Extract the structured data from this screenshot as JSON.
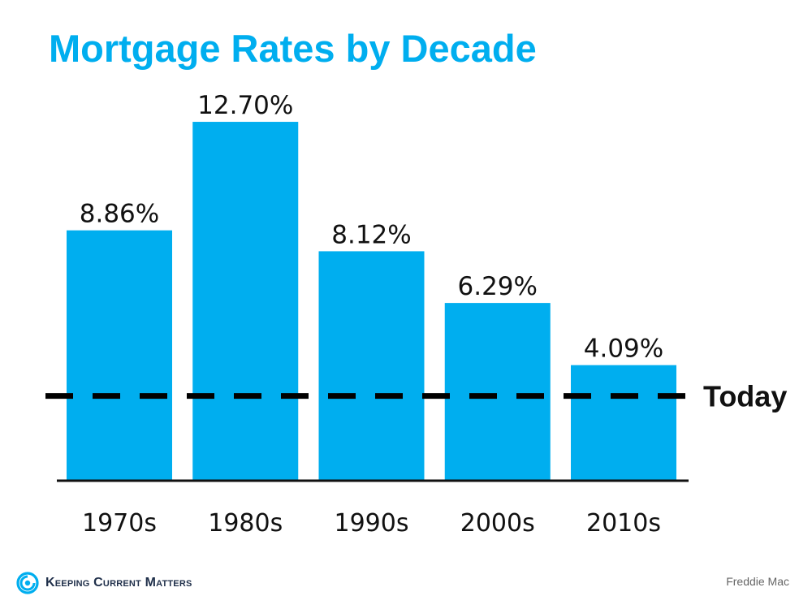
{
  "title": "Mortgage Rates by Decade",
  "chart_data": {
    "type": "bar",
    "title": "Mortgage Rates by Decade",
    "categories": [
      "1970s",
      "1980s",
      "1990s",
      "2000s",
      "2010s"
    ],
    "values": [
      8.86,
      12.7,
      8.12,
      6.29,
      4.09
    ],
    "value_labels": [
      "8.86%",
      "12.70%",
      "8.12%",
      "6.29%",
      "4.09%"
    ],
    "xlabel": "",
    "ylabel": "",
    "ylim": [
      0,
      15
    ],
    "grid": false,
    "reference_line": {
      "label": "Today",
      "value": 3.0,
      "style": "dashed"
    },
    "bar_color": "#00aeef"
  },
  "footer": {
    "brand": "Keeping Current Matters",
    "source": "Freddie Mac",
    "logo_icon": "spiral-logo-icon",
    "brand_color": "#00aeef"
  }
}
